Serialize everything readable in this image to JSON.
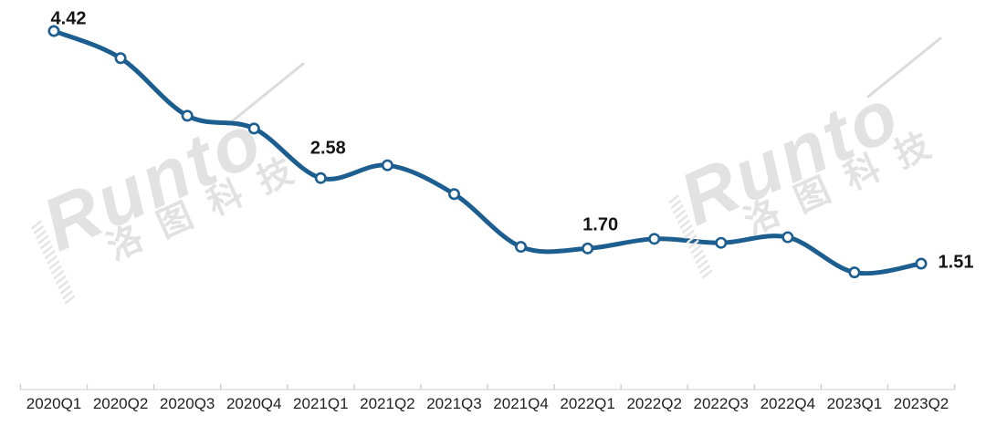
{
  "chart_data": {
    "type": "line",
    "title": "",
    "xlabel": "",
    "ylabel": "",
    "categories": [
      "2020Q1",
      "2020Q2",
      "2020Q3",
      "2020Q4",
      "2021Q1",
      "2021Q2",
      "2021Q3",
      "2021Q4",
      "2022Q1",
      "2022Q2",
      "2022Q3",
      "2022Q4",
      "2023Q1",
      "2023Q2"
    ],
    "series": [
      {
        "name": "",
        "values": [
          4.42,
          4.08,
          3.36,
          3.2,
          2.58,
          2.74,
          2.38,
          1.72,
          1.7,
          1.82,
          1.77,
          1.84,
          1.4,
          1.51
        ]
      }
    ],
    "point_labels": [
      {
        "index": 0,
        "text": "4.42"
      },
      {
        "index": 4,
        "text": "2.58"
      },
      {
        "index": 8,
        "text": "1.70"
      },
      {
        "index": 13,
        "text": "1.51"
      }
    ],
    "ylim": [
      0,
      4.8
    ],
    "grid": false,
    "legend_position": "none",
    "line_color": "#1b5e8f",
    "marker_style": "circle-white-fill",
    "axis_line_color": "#d8d8d8"
  },
  "watermark": {
    "brand": "Runto",
    "cn": "洛图科技"
  }
}
